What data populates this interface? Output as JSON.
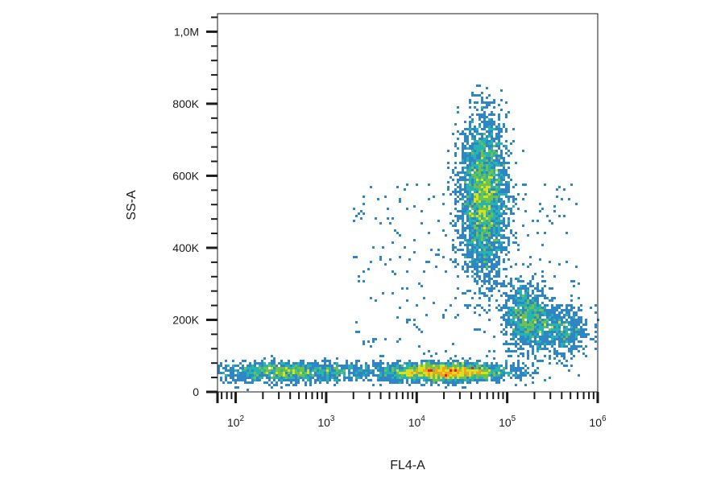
{
  "chart_data": {
    "type": "scatter",
    "title": "",
    "xlabel": "FL4-A",
    "ylabel": "SS-A",
    "x_scale": "log",
    "xlim": [
      63,
      1000000
    ],
    "ylim": [
      0,
      1050000
    ],
    "x_ticks": [
      {
        "base": "10",
        "exp": "2",
        "value": 100
      },
      {
        "base": "10",
        "exp": "3",
        "value": 1000
      },
      {
        "base": "10",
        "exp": "4",
        "value": 10000
      },
      {
        "base": "10",
        "exp": "5",
        "value": 100000
      },
      {
        "base": "10",
        "exp": "6",
        "value": 1000000
      }
    ],
    "y_ticks": [
      {
        "label": "0",
        "value": 0
      },
      {
        "label": "200K",
        "value": 200000
      },
      {
        "label": "400K",
        "value": 400000
      },
      {
        "label": "600K",
        "value": 600000
      },
      {
        "label": "800K",
        "value": 800000
      },
      {
        "label": "1,0M",
        "value": 1000000
      }
    ],
    "grid": false,
    "legend": "none",
    "density_colors": [
      "#2b3fa8",
      "#2f86c4",
      "#27b3b0",
      "#6cc24a",
      "#d8e020",
      "#f5a21a",
      "#e2231a"
    ],
    "populations": [
      {
        "x_center": 400,
        "y_center": 55000,
        "x_spread_decades": 0.45,
        "y_spread": 14000,
        "points": 1300
      },
      {
        "x_center": 20000,
        "y_center": 55000,
        "x_spread_decades": 0.35,
        "y_spread": 13000,
        "points": 2400
      },
      {
        "x_center": 55000,
        "y_center": 540000,
        "x_spread_decades": 0.13,
        "y_spread": 110000,
        "points": 3200
      },
      {
        "x_center": 160000,
        "y_center": 210000,
        "x_spread_decades": 0.12,
        "y_spread": 45000,
        "points": 900
      },
      {
        "x_center": 380000,
        "y_center": 170000,
        "x_spread_decades": 0.17,
        "y_spread": 35000,
        "points": 600
      }
    ]
  }
}
